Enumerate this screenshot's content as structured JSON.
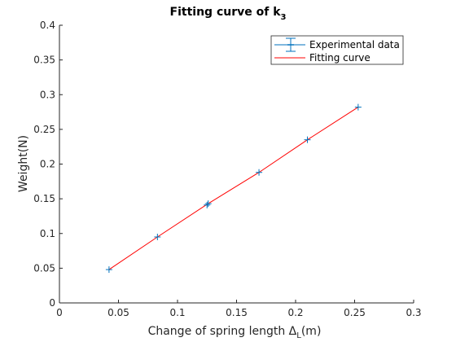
{
  "chart_data": {
    "type": "scatter",
    "title": "Fitting curve of k",
    "title_subscript": "3",
    "xlabel": "Change of spring length Δ",
    "xlabel_subscript": "L",
    "xlabel_unit": "(m)",
    "ylabel": "Weight(N)",
    "xlim": [
      0,
      0.3
    ],
    "ylim": [
      0,
      0.4
    ],
    "xticks": [
      "0",
      "0.05",
      "0.1",
      "0.15",
      "0.2",
      "0.25",
      "0.3"
    ],
    "yticks": [
      "0",
      "0.05",
      "0.1",
      "0.15",
      "0.2",
      "0.25",
      "0.3",
      "0.35",
      "0.4"
    ],
    "grid": false,
    "legend_position": "top-right",
    "series": [
      {
        "name": "Experimental data",
        "kind": "errorbar-markers",
        "marker": "+",
        "color": "#0072BD",
        "x": [
          0.042,
          0.083,
          0.125,
          0.126,
          0.169,
          0.21,
          0.253
        ],
        "y": [
          0.048,
          0.095,
          0.141,
          0.143,
          0.188,
          0.235,
          0.282
        ]
      },
      {
        "name": "Fitting curve",
        "kind": "line",
        "color": "#FF0000",
        "x": [
          0.042,
          0.083,
          0.125,
          0.169,
          0.21,
          0.253
        ],
        "y": [
          0.048,
          0.095,
          0.142,
          0.188,
          0.235,
          0.282
        ]
      }
    ]
  }
}
